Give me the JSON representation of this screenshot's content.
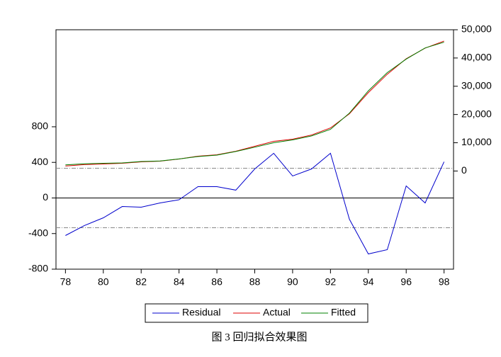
{
  "chart_data": {
    "type": "line",
    "caption": "图 3 回归拟合效果图",
    "x": [
      78,
      79,
      80,
      81,
      82,
      83,
      84,
      85,
      86,
      87,
      88,
      89,
      90,
      91,
      92,
      93,
      94,
      95,
      96,
      97,
      98
    ],
    "xlim": [
      77.5,
      98.5
    ],
    "xticks": [
      78,
      80,
      82,
      84,
      86,
      88,
      90,
      92,
      94,
      96,
      98
    ],
    "ylim": [
      -800,
      1890
    ],
    "yticks": [
      -800,
      -400,
      0,
      400,
      800
    ],
    "y2lim": [
      -34750,
      50000
    ],
    "y2ticks": [
      {
        "value": 0,
        "label": "0"
      },
      {
        "value": 10000,
        "label": "10,000"
      },
      {
        "value": 20000,
        "label": "20,000"
      },
      {
        "value": 30000,
        "label": "30,000"
      },
      {
        "value": 40000,
        "label": "40,000"
      },
      {
        "value": 50000,
        "label": "50,000"
      }
    ],
    "zero_line": 0,
    "ref_lines": [
      334,
      -334
    ],
    "series": [
      {
        "name": "Residual",
        "color": "#0000cc",
        "axis": "y",
        "values": [
          -422,
          -310,
          -223,
          -96,
          -104,
          -56,
          -20,
          127,
          127,
          88,
          326,
          502,
          247,
          326,
          502,
          -239,
          -629,
          -581,
          135,
          -56,
          406
        ]
      },
      {
        "name": "Actual",
        "color": "#dd0000",
        "axis": "y2",
        "values": [
          1750,
          2250,
          2500,
          2750,
          3250,
          3500,
          4250,
          5250,
          5750,
          7000,
          8750,
          10500,
          11250,
          12750,
          15250,
          20250,
          27750,
          34250,
          39750,
          43500,
          46000
        ]
      },
      {
        "name": "Fitted",
        "color": "#008000",
        "axis": "y2",
        "values": [
          2172,
          2560,
          2723,
          2846,
          3354,
          3556,
          4270,
          5123,
          5623,
          6912,
          8424,
          9998,
          11003,
          12424,
          14748,
          20489,
          28379,
          34831,
          39615,
          43556,
          45594
        ]
      }
    ],
    "legend": "bottom"
  }
}
